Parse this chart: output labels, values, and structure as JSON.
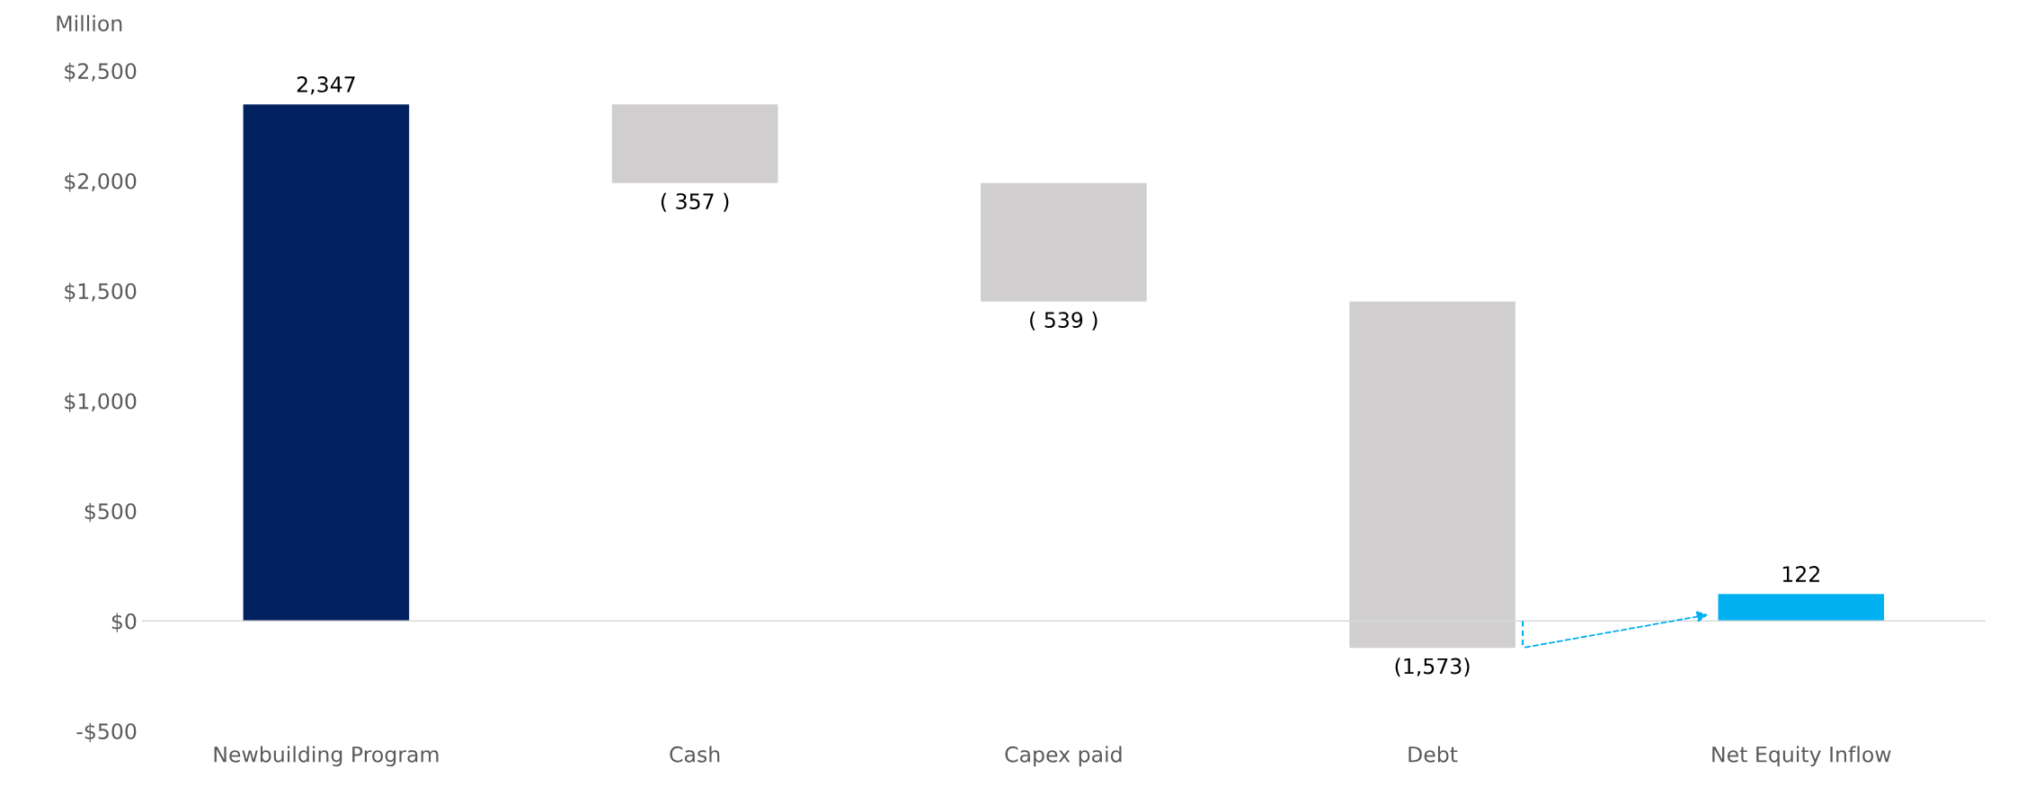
{
  "chart_data": {
    "type": "bar",
    "ylabel": "Million",
    "categories": [
      "Newbuilding Program",
      "Cash",
      "Capex paid",
      "Debt",
      "Net Equity Inflow"
    ],
    "values": [
      2347,
      -357,
      -539,
      -1573,
      122
    ],
    "base": [
      0,
      2347,
      1990,
      1451,
      0
    ],
    "colors": [
      "#002060",
      "#d0cece",
      "#d0cece",
      "#d0cece",
      "#00b0f0"
    ],
    "value_labels": [
      "2,347",
      "( 357 )",
      "( 539 )",
      "(1,573)",
      "122"
    ],
    "ylim": [
      -500,
      2500
    ],
    "yticks": [
      {
        "value": -500,
        "label": "-$500"
      },
      {
        "value": 0,
        "label": "$0"
      },
      {
        "value": 500,
        "label": "$500"
      },
      {
        "value": 1000,
        "label": "$1,000"
      },
      {
        "value": 1500,
        "label": "$1,500"
      },
      {
        "value": 2000,
        "label": "$2,000"
      },
      {
        "value": 2500,
        "label": "$2,500"
      }
    ],
    "ref_lines": [
      {
        "axis": "y",
        "value": 0,
        "color": "#d9d9d9"
      }
    ]
  }
}
